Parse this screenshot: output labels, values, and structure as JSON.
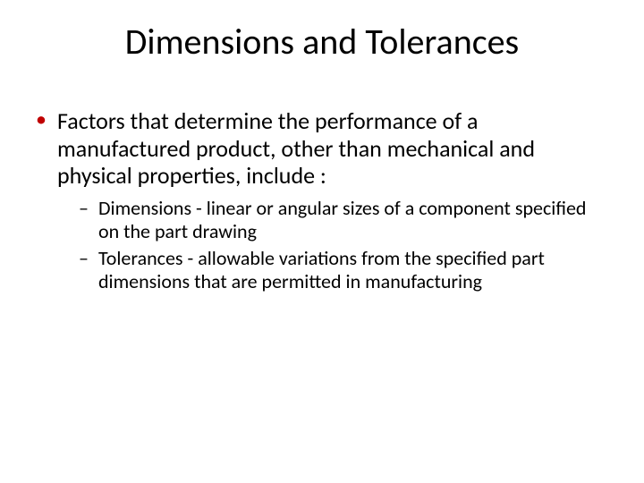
{
  "slide": {
    "title": "Dimensions and Tolerances",
    "title_fontsize": 40,
    "title_color": "#000000",
    "background_color": "#ffffff",
    "bullet_color_l1": "#c00000",
    "bullet_color_l2": "#000000",
    "body": {
      "level1_fontsize": 26,
      "level2_fontsize": 22,
      "items": [
        {
          "text": "Factors that determine the performance of a manufactured product, other than mechanical and physical properties, include :",
          "children": [
            {
              "text": "Dimensions - linear or angular sizes of a component specified on the part drawing"
            },
            {
              "text": "Tolerances - allowable variations from the specified part dimensions that are permitted in manufacturing"
            }
          ]
        }
      ]
    }
  }
}
